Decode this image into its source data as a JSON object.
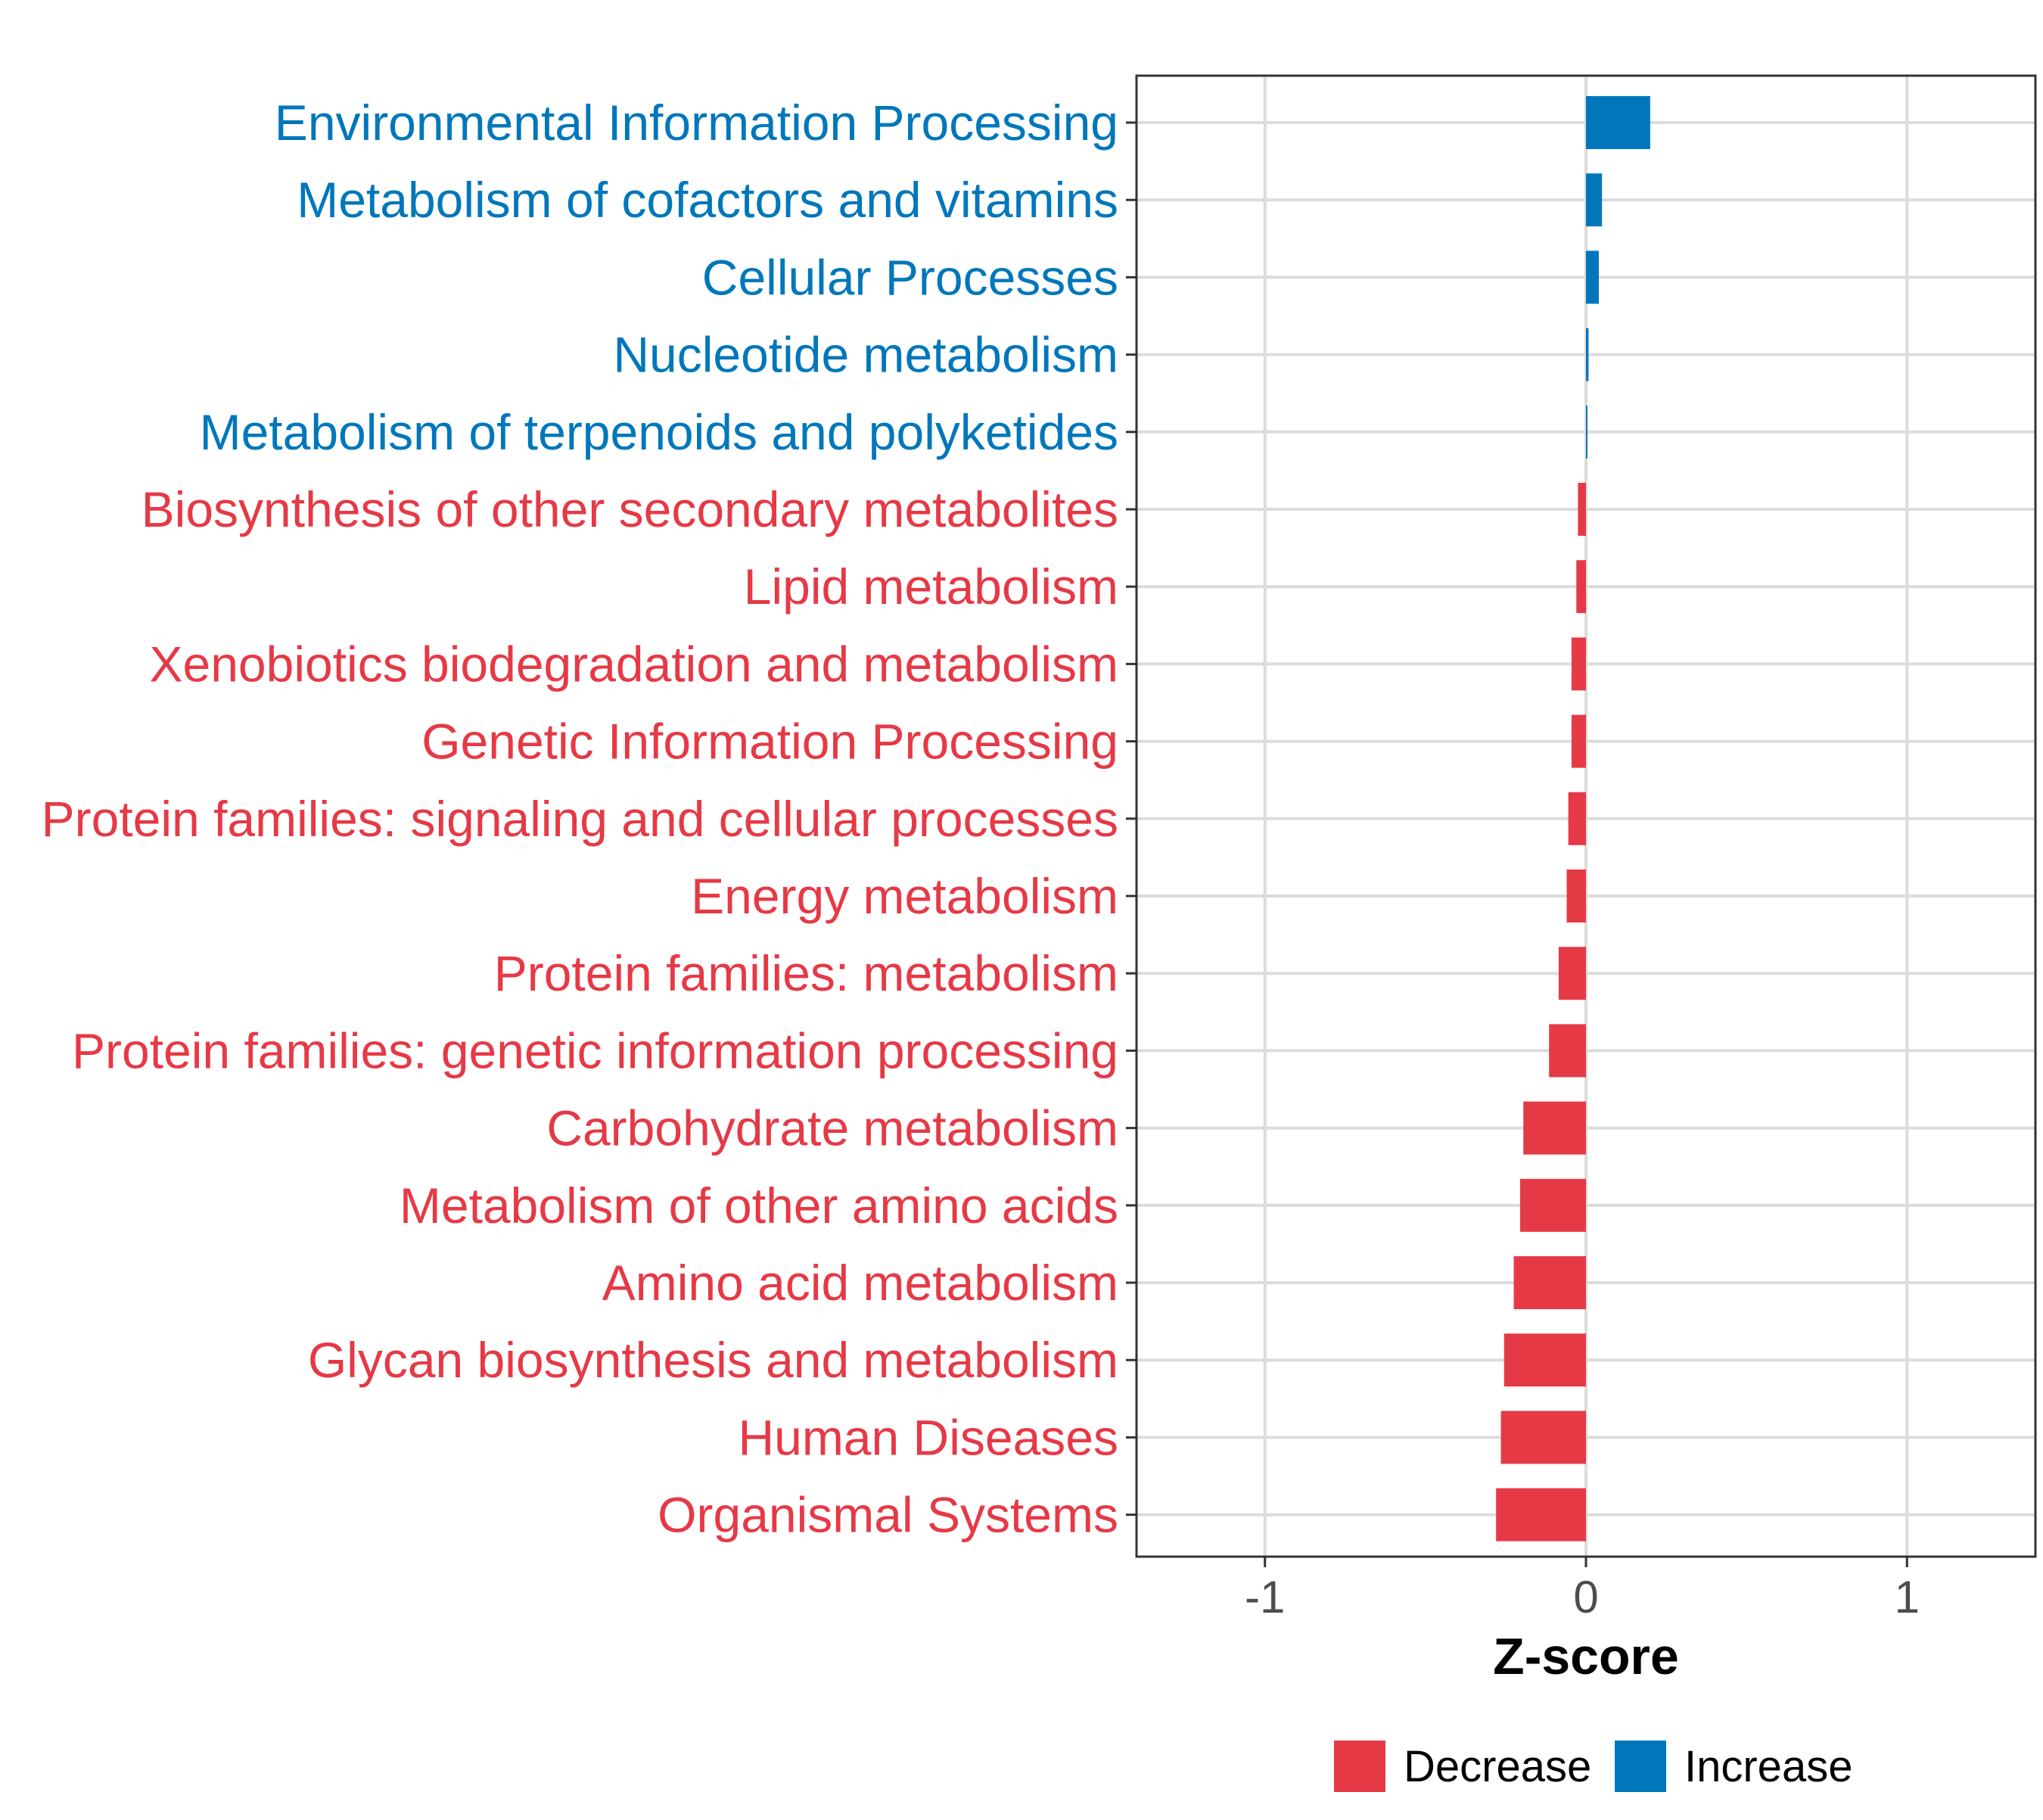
{
  "chart_data": {
    "type": "bar",
    "orientation": "horizontal",
    "title": "",
    "xlabel": "Z-score",
    "ylabel": "",
    "xlim": [
      -1.4,
      1.4
    ],
    "xticks": [
      -1,
      0,
      1
    ],
    "xtick_labels": [
      "-1",
      "0",
      "1"
    ],
    "grid": true,
    "legend_position": "bottom",
    "legend": [
      {
        "name": "Decrease",
        "color": "#e63946"
      },
      {
        "name": "Increase",
        "color": "#0077bb"
      }
    ],
    "categories": [
      "Environmental Information Processing",
      "Metabolism of cofactors and vitamins",
      "Cellular Processes",
      "Nucleotide metabolism",
      "Metabolism of terpenoids and polyketides",
      "Biosynthesis of other secondary metabolites",
      "Lipid metabolism",
      "Xenobiotics biodegradation and metabolism",
      "Genetic Information Processing",
      "Protein families: signaling and cellular processes",
      "Energy metabolism",
      "Protein families: metabolism",
      "Protein families: genetic information processing",
      "Carbohydrate metabolism",
      "Metabolism of other amino acids",
      "Amino acid metabolism",
      "Glycan biosynthesis and metabolism",
      "Human Diseases",
      "Organismal Systems"
    ],
    "values": [
      0.2,
      0.05,
      0.04,
      0.008,
      0.003,
      -0.025,
      -0.03,
      -0.045,
      -0.045,
      -0.055,
      -0.06,
      -0.085,
      -0.115,
      -0.195,
      -0.205,
      -0.225,
      -0.255,
      -0.265,
      -0.28
    ],
    "groups": [
      "Increase",
      "Increase",
      "Increase",
      "Increase",
      "Increase",
      "Decrease",
      "Decrease",
      "Decrease",
      "Decrease",
      "Decrease",
      "Decrease",
      "Decrease",
      "Decrease",
      "Decrease",
      "Decrease",
      "Decrease",
      "Decrease",
      "Decrease",
      "Decrease"
    ]
  }
}
